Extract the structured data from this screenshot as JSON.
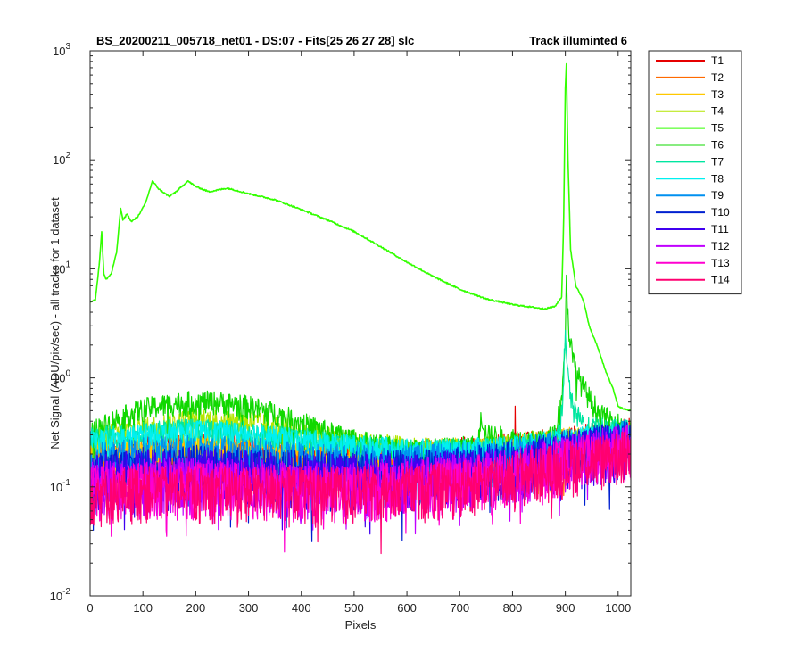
{
  "chart_data": {
    "type": "line",
    "title_left": "BS_20200211_005718_net01 - DS:07 - Fits[25  26  27  28]   slc",
    "title_right": "Track illuminted 6",
    "xlabel": "Pixels",
    "ylabel": "Net Signal (ADU/pix/sec) - all tracks for 1 dataset",
    "xlim": [
      0,
      1024
    ],
    "ylim": [
      0.01,
      1000
    ],
    "yscale": "log",
    "x_ticks": [
      0,
      100,
      200,
      300,
      400,
      500,
      600,
      700,
      800,
      900,
      1000
    ],
    "y_ticks": [
      {
        "value": 0.01,
        "mantissa": "10",
        "exp": "-2"
      },
      {
        "value": 0.1,
        "mantissa": "10",
        "exp": "-1"
      },
      {
        "value": 1,
        "mantissa": "10",
        "exp": "0"
      },
      {
        "value": 10,
        "mantissa": "10",
        "exp": "1"
      },
      {
        "value": 100,
        "mantissa": "10",
        "exp": "2"
      },
      {
        "value": 1000,
        "mantissa": "10",
        "exp": "3"
      }
    ],
    "grid": false,
    "legend_position": "outside-right",
    "series": [
      {
        "name": "T1",
        "color": "#e60000",
        "profile": "noise",
        "base": 0.2,
        "peaks": [
          {
            "x": 805,
            "y": 0.55
          }
        ],
        "points": [
          [
            0,
            0.2
          ],
          [
            100,
            0.21
          ],
          [
            200,
            0.22
          ],
          [
            300,
            0.21
          ],
          [
            400,
            0.19
          ],
          [
            500,
            0.18
          ],
          [
            600,
            0.19
          ],
          [
            700,
            0.2
          ],
          [
            800,
            0.22
          ],
          [
            900,
            0.25
          ],
          [
            1024,
            0.3
          ]
        ]
      },
      {
        "name": "T2",
        "color": "#ff6a00",
        "profile": "noise",
        "base": 0.19,
        "points": [
          [
            0,
            0.19
          ],
          [
            100,
            0.2
          ],
          [
            200,
            0.21
          ],
          [
            300,
            0.2
          ],
          [
            400,
            0.19
          ],
          [
            500,
            0.18
          ],
          [
            600,
            0.18
          ],
          [
            700,
            0.19
          ],
          [
            800,
            0.21
          ],
          [
            900,
            0.24
          ],
          [
            1024,
            0.29
          ]
        ]
      },
      {
        "name": "T3",
        "color": "#ffc800",
        "profile": "noise",
        "base": 0.2,
        "points": [
          [
            0,
            0.2
          ],
          [
            100,
            0.22
          ],
          [
            200,
            0.24
          ],
          [
            300,
            0.23
          ],
          [
            400,
            0.21
          ],
          [
            500,
            0.2
          ],
          [
            600,
            0.19
          ],
          [
            700,
            0.2
          ],
          [
            800,
            0.22
          ],
          [
            900,
            0.25
          ],
          [
            1024,
            0.3
          ]
        ]
      },
      {
        "name": "T4",
        "color": "#b4e600",
        "profile": "noise",
        "base": 0.28,
        "points": [
          [
            0,
            0.28
          ],
          [
            100,
            0.35
          ],
          [
            200,
            0.42
          ],
          [
            300,
            0.4
          ],
          [
            400,
            0.32
          ],
          [
            500,
            0.26
          ],
          [
            600,
            0.23
          ],
          [
            700,
            0.22
          ],
          [
            800,
            0.24
          ],
          [
            900,
            0.27
          ],
          [
            1024,
            0.32
          ]
        ]
      },
      {
        "name": "T5",
        "color": "#33ff00",
        "profile": "main",
        "points": [
          [
            0,
            5
          ],
          [
            10,
            5.2
          ],
          [
            18,
            12
          ],
          [
            22,
            22
          ],
          [
            26,
            9
          ],
          [
            30,
            8
          ],
          [
            40,
            9
          ],
          [
            50,
            14
          ],
          [
            58,
            36
          ],
          [
            62,
            28
          ],
          [
            70,
            32
          ],
          [
            78,
            27
          ],
          [
            90,
            30
          ],
          [
            105,
            40
          ],
          [
            118,
            64
          ],
          [
            130,
            54
          ],
          [
            150,
            46
          ],
          [
            165,
            52
          ],
          [
            185,
            64
          ],
          [
            200,
            57
          ],
          [
            225,
            51
          ],
          [
            260,
            55
          ],
          [
            300,
            49
          ],
          [
            350,
            43
          ],
          [
            400,
            35
          ],
          [
            450,
            28
          ],
          [
            500,
            22
          ],
          [
            550,
            16
          ],
          [
            600,
            11.5
          ],
          [
            650,
            8.5
          ],
          [
            700,
            6.5
          ],
          [
            750,
            5.3
          ],
          [
            800,
            4.7
          ],
          [
            860,
            4.3
          ],
          [
            880,
            4.5
          ],
          [
            893,
            5.5
          ],
          [
            897,
            30
          ],
          [
            900,
            450
          ],
          [
            902,
            750
          ],
          [
            905,
            100
          ],
          [
            910,
            15
          ],
          [
            920,
            7
          ],
          [
            935,
            5
          ],
          [
            945,
            3
          ],
          [
            960,
            2
          ],
          [
            975,
            1.2
          ],
          [
            990,
            0.8
          ],
          [
            1000,
            0.55
          ],
          [
            1010,
            0.52
          ],
          [
            1024,
            0.5
          ]
        ]
      },
      {
        "name": "T6",
        "color": "#10d800",
        "profile": "noise",
        "base": 0.35,
        "peaks": [
          {
            "x": 740,
            "y": 0.48
          }
        ],
        "points": [
          [
            0,
            0.32
          ],
          [
            50,
            0.42
          ],
          [
            100,
            0.52
          ],
          [
            150,
            0.58
          ],
          [
            200,
            0.61
          ],
          [
            250,
            0.6
          ],
          [
            300,
            0.55
          ],
          [
            350,
            0.48
          ],
          [
            400,
            0.39
          ],
          [
            450,
            0.32
          ],
          [
            500,
            0.27
          ],
          [
            550,
            0.24
          ],
          [
            600,
            0.22
          ],
          [
            650,
            0.22
          ],
          [
            700,
            0.23
          ],
          [
            735,
            0.24
          ],
          [
            740,
            0.48
          ],
          [
            750,
            0.3
          ],
          [
            800,
            0.28
          ],
          [
            850,
            0.26
          ],
          [
            880,
            0.3
          ],
          [
            895,
            0.8
          ],
          [
            900,
            2
          ],
          [
            902,
            8.5
          ],
          [
            906,
            3
          ],
          [
            915,
            1.4
          ],
          [
            930,
            0.9
          ],
          [
            950,
            0.6
          ],
          [
            970,
            0.45
          ],
          [
            1000,
            0.38
          ],
          [
            1024,
            0.35
          ]
        ]
      },
      {
        "name": "T7",
        "color": "#00e6a0",
        "profile": "noise",
        "base": 0.3,
        "points": [
          [
            0,
            0.28
          ],
          [
            100,
            0.32
          ],
          [
            200,
            0.34
          ],
          [
            300,
            0.32
          ],
          [
            400,
            0.28
          ],
          [
            500,
            0.24
          ],
          [
            600,
            0.22
          ],
          [
            700,
            0.22
          ],
          [
            800,
            0.24
          ],
          [
            880,
            0.26
          ],
          [
            895,
            0.5
          ],
          [
            900,
            3.2
          ],
          [
            905,
            1
          ],
          [
            915,
            0.5
          ],
          [
            940,
            0.35
          ],
          [
            1024,
            0.33
          ]
        ]
      },
      {
        "name": "T8",
        "color": "#00f0f0",
        "profile": "noise",
        "base": 0.26,
        "points": [
          [
            0,
            0.26
          ],
          [
            100,
            0.3
          ],
          [
            200,
            0.33
          ],
          [
            300,
            0.31
          ],
          [
            400,
            0.27
          ],
          [
            500,
            0.24
          ],
          [
            600,
            0.22
          ],
          [
            700,
            0.22
          ],
          [
            800,
            0.24
          ],
          [
            900,
            0.27
          ],
          [
            1024,
            0.34
          ]
        ]
      },
      {
        "name": "T9",
        "color": "#0090f0",
        "profile": "noise",
        "base": 0.18,
        "points": [
          [
            0,
            0.18
          ],
          [
            100,
            0.2
          ],
          [
            200,
            0.21
          ],
          [
            300,
            0.2
          ],
          [
            400,
            0.18
          ],
          [
            500,
            0.17
          ],
          [
            600,
            0.17
          ],
          [
            700,
            0.18
          ],
          [
            800,
            0.2
          ],
          [
            900,
            0.24
          ],
          [
            1024,
            0.3
          ]
        ]
      },
      {
        "name": "T10",
        "color": "#0020d0",
        "profile": "noise",
        "base": 0.14,
        "points": [
          [
            0,
            0.14
          ],
          [
            100,
            0.15
          ],
          [
            200,
            0.16
          ],
          [
            300,
            0.15
          ],
          [
            400,
            0.14
          ],
          [
            500,
            0.14
          ],
          [
            600,
            0.14
          ],
          [
            700,
            0.15
          ],
          [
            800,
            0.17
          ],
          [
            900,
            0.21
          ],
          [
            1024,
            0.27
          ]
        ]
      },
      {
        "name": "T11",
        "color": "#4000f0",
        "profile": "noise",
        "base": 0.13,
        "points": [
          [
            0,
            0.13
          ],
          [
            100,
            0.14
          ],
          [
            200,
            0.15
          ],
          [
            300,
            0.14
          ],
          [
            400,
            0.13
          ],
          [
            500,
            0.13
          ],
          [
            600,
            0.13
          ],
          [
            700,
            0.14
          ],
          [
            800,
            0.16
          ],
          [
            900,
            0.2
          ],
          [
            1024,
            0.26
          ]
        ]
      },
      {
        "name": "T12",
        "color": "#c000ff",
        "profile": "noise",
        "base": 0.11,
        "points": [
          [
            0,
            0.11
          ],
          [
            100,
            0.12
          ],
          [
            200,
            0.12
          ],
          [
            300,
            0.12
          ],
          [
            400,
            0.11
          ],
          [
            500,
            0.11
          ],
          [
            600,
            0.12
          ],
          [
            700,
            0.13
          ],
          [
            800,
            0.15
          ],
          [
            900,
            0.19
          ],
          [
            1024,
            0.25
          ]
        ]
      },
      {
        "name": "T13",
        "color": "#ff00d0",
        "profile": "noise",
        "base": 0.1,
        "points": [
          [
            0,
            0.1
          ],
          [
            100,
            0.11
          ],
          [
            200,
            0.11
          ],
          [
            300,
            0.11
          ],
          [
            400,
            0.1
          ],
          [
            500,
            0.1
          ],
          [
            600,
            0.11
          ],
          [
            700,
            0.12
          ],
          [
            800,
            0.14
          ],
          [
            900,
            0.18
          ],
          [
            1024,
            0.24
          ]
        ]
      },
      {
        "name": "T14",
        "color": "#ff0070",
        "profile": "noise",
        "base": 0.1,
        "points": [
          [
            0,
            0.09
          ],
          [
            100,
            0.1
          ],
          [
            200,
            0.1
          ],
          [
            300,
            0.1
          ],
          [
            400,
            0.1
          ],
          [
            500,
            0.1
          ],
          [
            600,
            0.1
          ],
          [
            700,
            0.11
          ],
          [
            800,
            0.13
          ],
          [
            900,
            0.17
          ],
          [
            1024,
            0.22
          ]
        ]
      }
    ]
  }
}
